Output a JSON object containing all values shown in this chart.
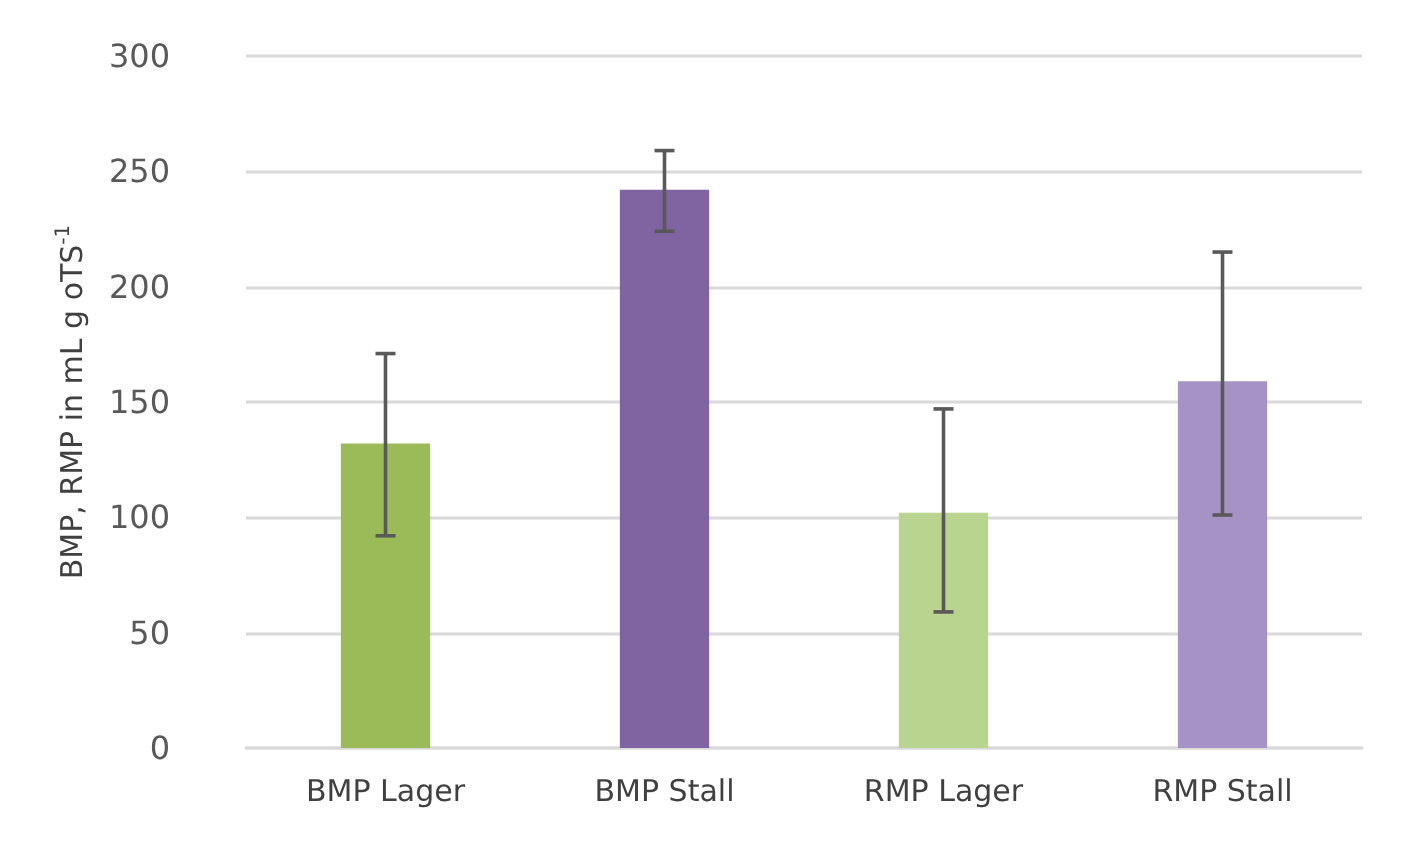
{
  "chart_data": {
    "type": "bar",
    "ylabel": "BMP, RMP in mL g oTS$^{-1}$",
    "categories": [
      "BMP Lager",
      "BMP Stall",
      "RMP Lager",
      "RMP Stall"
    ],
    "values": [
      132,
      242,
      102,
      159
    ],
    "colors": [
      "#9bbb59",
      "#8064a2",
      "#b8d48e",
      "#a792c6"
    ],
    "errors": [
      [
        92,
        171
      ],
      [
        224,
        259
      ],
      [
        59,
        147
      ],
      [
        101,
        215
      ]
    ],
    "ylim": [
      0,
      300
    ],
    "yticks": [
      0,
      50,
      100,
      150,
      200,
      250,
      300
    ],
    "grid": "y"
  }
}
